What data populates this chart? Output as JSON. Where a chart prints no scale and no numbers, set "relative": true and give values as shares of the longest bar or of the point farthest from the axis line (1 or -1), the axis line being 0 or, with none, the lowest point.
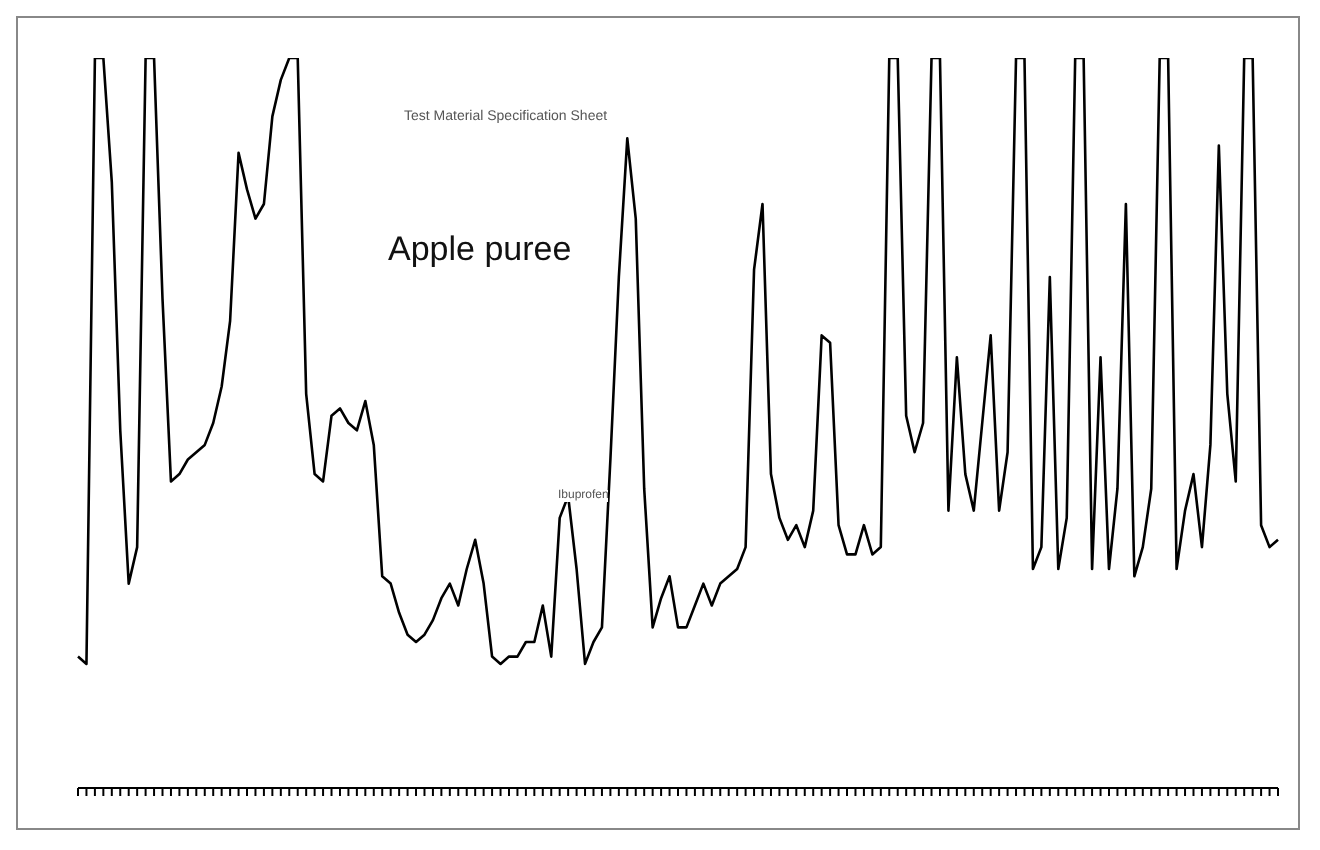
{
  "chart_data": {
    "type": "line",
    "title": "Apple puree",
    "subtitle": "Test Material Specification Sheet",
    "annotations": [
      "Ibuprofen"
    ],
    "relative": true,
    "grid": false,
    "marker": "none",
    "line_style": "solid",
    "categories": [
      null,
      null,
      null,
      null,
      null,
      null,
      null,
      null,
      null,
      null,
      null,
      null,
      null,
      null,
      null,
      null,
      null,
      null,
      null,
      null,
      null,
      null,
      null,
      null,
      null,
      null,
      null,
      null,
      null,
      null,
      null,
      null,
      null,
      null,
      null,
      null,
      null,
      null,
      null,
      null,
      null,
      null,
      null,
      null,
      null,
      null,
      null,
      null,
      null,
      null,
      null,
      null,
      null,
      null,
      null,
      null,
      null,
      null,
      null,
      null,
      null,
      null,
      null,
      null,
      null,
      null,
      null,
      null,
      null,
      null,
      null,
      null,
      null,
      null,
      null,
      null,
      null,
      null,
      null,
      null,
      null,
      null,
      null,
      null,
      null,
      null,
      null,
      null,
      null,
      null,
      null,
      null,
      null,
      null,
      null,
      null,
      null,
      null,
      null,
      null,
      null,
      null,
      null,
      null,
      null,
      null,
      null,
      null,
      null,
      null,
      null,
      null,
      null,
      null,
      null,
      null,
      null,
      null,
      null,
      null,
      null,
      null,
      null,
      null,
      null,
      null,
      null,
      null,
      null,
      null,
      null,
      null,
      null,
      null,
      null,
      null,
      null,
      null,
      null,
      null,
      null,
      null,
      null
    ],
    "series": [
      {
        "color": "#000000",
        "values": [
          0.18,
          0.17,
          1.0,
          1.0,
          0.83,
          0.49,
          0.28,
          0.33,
          1.0,
          1.0,
          0.67,
          0.42,
          0.43,
          0.45,
          0.46,
          0.47,
          0.5,
          0.55,
          0.64,
          0.87,
          0.82,
          0.78,
          0.8,
          0.92,
          0.97,
          1.0,
          1.0,
          0.54,
          0.43,
          0.42,
          0.51,
          0.52,
          0.5,
          0.49,
          0.53,
          0.47,
          0.29,
          0.28,
          0.24,
          0.21,
          0.2,
          0.21,
          0.23,
          0.26,
          0.28,
          0.25,
          0.3,
          0.34,
          0.28,
          0.18,
          0.17,
          0.18,
          0.18,
          0.2,
          0.2,
          0.25,
          0.18,
          0.37,
          0.4,
          0.3,
          0.17,
          0.2,
          0.22,
          0.45,
          0.7,
          0.89,
          0.78,
          0.41,
          0.22,
          0.26,
          0.29,
          0.22,
          0.22,
          0.25,
          0.28,
          0.25,
          0.28,
          0.29,
          0.3,
          0.33,
          0.71,
          0.8,
          0.43,
          0.37,
          0.34,
          0.36,
          0.33,
          0.38,
          0.62,
          0.61,
          0.36,
          0.32,
          0.32,
          0.36,
          0.32,
          0.33,
          1.0,
          1.0,
          0.51,
          0.46,
          0.5,
          1.0,
          1.0,
          0.38,
          0.59,
          0.43,
          0.38,
          0.5,
          0.62,
          0.38,
          0.46,
          1.0,
          1.0,
          0.3,
          0.33,
          0.7,
          0.3,
          0.37,
          1.0,
          1.0,
          0.3,
          0.59,
          0.3,
          0.41,
          0.8,
          0.29,
          0.33,
          0.41,
          1.0,
          1.0,
          0.3,
          0.38,
          0.43,
          0.33,
          0.47,
          0.88,
          0.54,
          0.42,
          1.0,
          1.0,
          0.36,
          0.33,
          0.34
        ]
      }
    ]
  }
}
